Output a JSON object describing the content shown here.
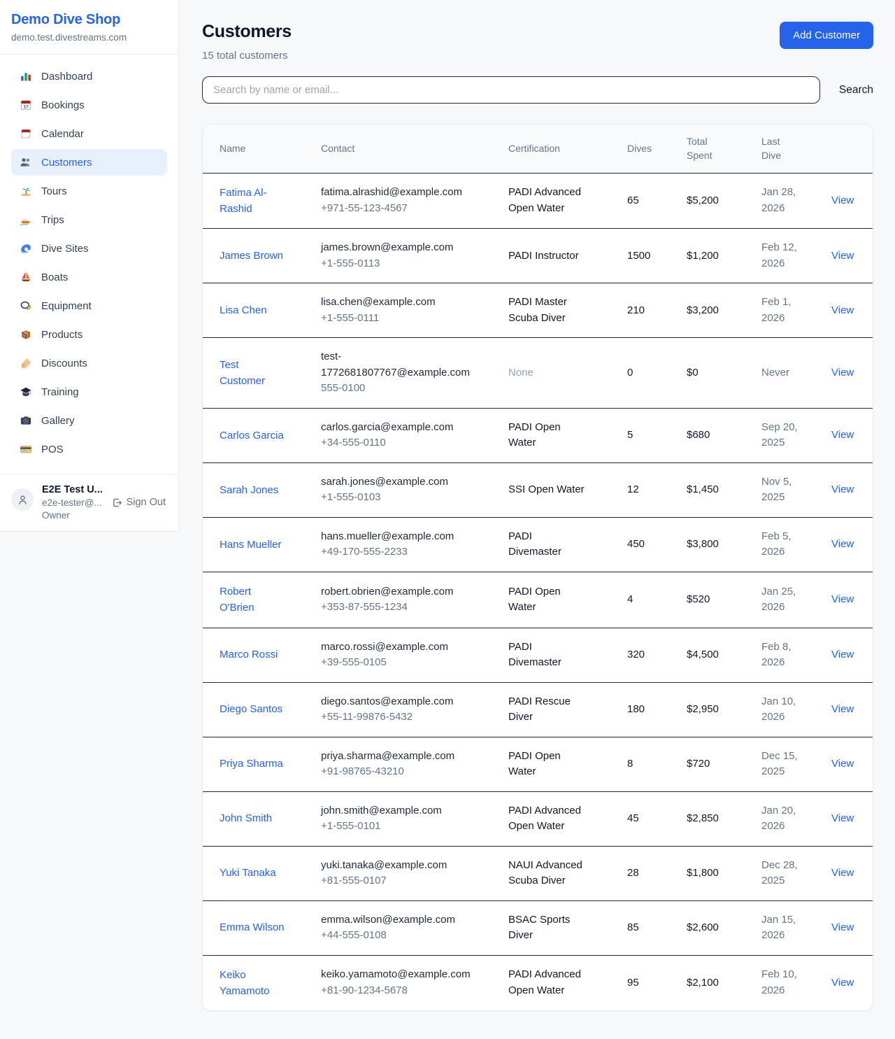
{
  "colors": {
    "accent": "#2563eb",
    "active_item_bg": "#e8f0fc",
    "link": "#2563eb",
    "page_bg": "#f7f8fa",
    "row_divider": "#1f2937"
  },
  "sidebar": {
    "shop_name": "Demo Dive Shop",
    "shop_domain": "demo.test.divestreams.com",
    "items": [
      {
        "label": "Dashboard",
        "icon": "bar-chart",
        "active": false
      },
      {
        "label": "Bookings",
        "icon": "calendar-date",
        "active": false
      },
      {
        "label": "Calendar",
        "icon": "tear-calendar",
        "active": false
      },
      {
        "label": "Customers",
        "icon": "people",
        "active": true
      },
      {
        "label": "Tours",
        "icon": "desert-island",
        "active": false
      },
      {
        "label": "Trips",
        "icon": "speedboat",
        "active": false
      },
      {
        "label": "Dive Sites",
        "icon": "wave",
        "active": false
      },
      {
        "label": "Boats",
        "icon": "sailboat",
        "active": false
      },
      {
        "label": "Equipment",
        "icon": "diving-mask",
        "active": false
      },
      {
        "label": "Products",
        "icon": "package",
        "active": false
      },
      {
        "label": "Discounts",
        "icon": "tag",
        "active": false
      },
      {
        "label": "Training",
        "icon": "graduation-cap",
        "active": false
      },
      {
        "label": "Gallery",
        "icon": "camera",
        "active": false
      },
      {
        "label": "POS",
        "icon": "credit-card",
        "active": false
      }
    ],
    "user": {
      "name": "E2E Test U...",
      "email": "e2e-tester@...",
      "role": "Owner",
      "sign_out_label": "Sign Out"
    }
  },
  "header": {
    "title": "Customers",
    "subtitle": "15 total customers",
    "add_button_label": "Add Customer"
  },
  "search": {
    "placeholder": "Search by name or email...",
    "button_label": "Search"
  },
  "table": {
    "columns": [
      {
        "key": "name",
        "label": "Name"
      },
      {
        "key": "contact",
        "label": "Contact"
      },
      {
        "key": "certification",
        "label": "Certification"
      },
      {
        "key": "dives",
        "label": "Dives"
      },
      {
        "key": "total_spent",
        "label": "Total Spent"
      },
      {
        "key": "last_dive",
        "label": "Last Dive"
      },
      {
        "key": "action",
        "label": ""
      }
    ],
    "rows": [
      {
        "name": "Fatima Al-Rashid",
        "email": "fatima.alrashid@example.com",
        "phone": "+971-55-123-4567",
        "certification": "PADI Advanced Open Water",
        "dives": "65",
        "total_spent": "$5,200",
        "last_dive": "Jan 28, 2026",
        "action": "View"
      },
      {
        "name": "James Brown",
        "email": "james.brown@example.com",
        "phone": "+1-555-0113",
        "certification": "PADI Instructor",
        "dives": "1500",
        "total_spent": "$1,200",
        "last_dive": "Feb 12, 2026",
        "action": "View"
      },
      {
        "name": "Lisa Chen",
        "email": "lisa.chen@example.com",
        "phone": "+1-555-0111",
        "certification": "PADI Master Scuba Diver",
        "dives": "210",
        "total_spent": "$3,200",
        "last_dive": "Feb 1, 2026",
        "action": "View"
      },
      {
        "name": "Test Customer",
        "email": "test-1772681807767@example.com",
        "phone": "555-0100",
        "certification": "None",
        "dives": "0",
        "total_spent": "$0",
        "last_dive": "Never",
        "action": "View"
      },
      {
        "name": "Carlos Garcia",
        "email": "carlos.garcia@example.com",
        "phone": "+34-555-0110",
        "certification": "PADI Open Water",
        "dives": "5",
        "total_spent": "$680",
        "last_dive": "Sep 20, 2025",
        "action": "View"
      },
      {
        "name": "Sarah Jones",
        "email": "sarah.jones@example.com",
        "phone": "+1-555-0103",
        "certification": "SSI Open Water",
        "dives": "12",
        "total_spent": "$1,450",
        "last_dive": "Nov 5, 2025",
        "action": "View"
      },
      {
        "name": "Hans Mueller",
        "email": "hans.mueller@example.com",
        "phone": "+49-170-555-2233",
        "certification": "PADI Divemaster",
        "dives": "450",
        "total_spent": "$3,800",
        "last_dive": "Feb 5, 2026",
        "action": "View"
      },
      {
        "name": "Robert O'Brien",
        "email": "robert.obrien@example.com",
        "phone": "+353-87-555-1234",
        "certification": "PADI Open Water",
        "dives": "4",
        "total_spent": "$520",
        "last_dive": "Jan 25, 2026",
        "action": "View"
      },
      {
        "name": "Marco Rossi",
        "email": "marco.rossi@example.com",
        "phone": "+39-555-0105",
        "certification": "PADI Divemaster",
        "dives": "320",
        "total_spent": "$4,500",
        "last_dive": "Feb 8, 2026",
        "action": "View"
      },
      {
        "name": "Diego Santos",
        "email": "diego.santos@example.com",
        "phone": "+55-11-99876-5432",
        "certification": "PADI Rescue Diver",
        "dives": "180",
        "total_spent": "$2,950",
        "last_dive": "Jan 10, 2026",
        "action": "View"
      },
      {
        "name": "Priya Sharma",
        "email": "priya.sharma@example.com",
        "phone": "+91-98765-43210",
        "certification": "PADI Open Water",
        "dives": "8",
        "total_spent": "$720",
        "last_dive": "Dec 15, 2025",
        "action": "View"
      },
      {
        "name": "John Smith",
        "email": "john.smith@example.com",
        "phone": "+1-555-0101",
        "certification": "PADI Advanced Open Water",
        "dives": "45",
        "total_spent": "$2,850",
        "last_dive": "Jan 20, 2026",
        "action": "View"
      },
      {
        "name": "Yuki Tanaka",
        "email": "yuki.tanaka@example.com",
        "phone": "+81-555-0107",
        "certification": "NAUI Advanced Scuba Diver",
        "dives": "28",
        "total_spent": "$1,800",
        "last_dive": "Dec 28, 2025",
        "action": "View"
      },
      {
        "name": "Emma Wilson",
        "email": "emma.wilson@example.com",
        "phone": "+44-555-0108",
        "certification": "BSAC Sports Diver",
        "dives": "85",
        "total_spent": "$2,600",
        "last_dive": "Jan 15, 2026",
        "action": "View"
      },
      {
        "name": "Keiko Yamamoto",
        "email": "keiko.yamamoto@example.com",
        "phone": "+81-90-1234-5678",
        "certification": "PADI Advanced Open Water",
        "dives": "95",
        "total_spent": "$2,100",
        "last_dive": "Feb 10, 2026",
        "action": "View"
      }
    ]
  }
}
